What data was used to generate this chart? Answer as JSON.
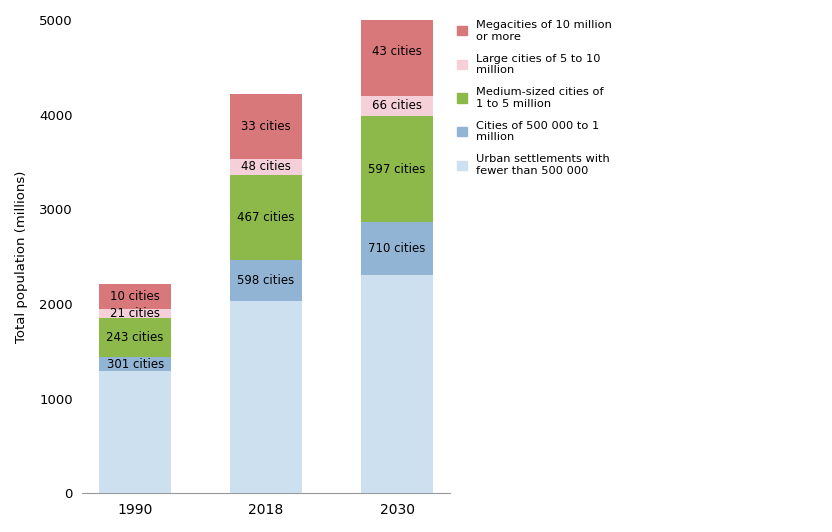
{
  "categories": [
    "1990",
    "2018",
    "2030"
  ],
  "series": [
    {
      "label": "Urban settlements with\nfewer than 500 000",
      "color": "#cce0f0",
      "values": [
        1290,
        2030,
        2310
      ]
    },
    {
      "label": "Cities of 500 000 to 1\nmillion",
      "color": "#92b4d4",
      "values": [
        150,
        435,
        555
      ]
    },
    {
      "label": "Medium-sized cities of\n1 to 5 million",
      "color": "#8db84a",
      "values": [
        410,
        895,
        1120
      ]
    },
    {
      "label": "Large cities of 5 to 10\nmillion",
      "color": "#f5d0d8",
      "values": [
        95,
        175,
        215
      ]
    },
    {
      "label": "Megacities of 10 million\nor more",
      "color": "#d9787a",
      "values": [
        270,
        680,
        940
      ]
    }
  ],
  "annotations": [
    {
      "bar": 0,
      "layer": 1,
      "text": "301 cities"
    },
    {
      "bar": 0,
      "layer": 2,
      "text": "243 cities"
    },
    {
      "bar": 0,
      "layer": 3,
      "text": "21 cities"
    },
    {
      "bar": 0,
      "layer": 4,
      "text": "10 cities"
    },
    {
      "bar": 1,
      "layer": 1,
      "text": "598 cities"
    },
    {
      "bar": 1,
      "layer": 2,
      "text": "467 cities"
    },
    {
      "bar": 1,
      "layer": 3,
      "text": "48 cities"
    },
    {
      "bar": 1,
      "layer": 4,
      "text": "33 cities"
    },
    {
      "bar": 2,
      "layer": 1,
      "text": "710 cities"
    },
    {
      "bar": 2,
      "layer": 2,
      "text": "597 cities"
    },
    {
      "bar": 2,
      "layer": 3,
      "text": "66 cities"
    },
    {
      "bar": 2,
      "layer": 4,
      "text": "43 cities"
    }
  ],
  "ylabel": "Total population (millions)",
  "ylim": [
    0,
    5000
  ],
  "yticks": [
    0,
    1000,
    2000,
    3000,
    4000,
    5000
  ],
  "bar_width": 0.55,
  "background_color": "#ffffff",
  "legend_order": [
    4,
    3,
    2,
    1,
    0
  ],
  "legend_labels": [
    "Megacities of 10 million\nor more",
    "Large cities of 5 to 10\nmillion",
    "Medium-sized cities of\n1 to 5 million",
    "Cities of 500 000 to 1\nmillion",
    "Urban settlements with\nfewer than 500 000"
  ],
  "legend_colors": [
    "#d9787a",
    "#f5d0d8",
    "#8db84a",
    "#92b4d4",
    "#cce0f0"
  ]
}
